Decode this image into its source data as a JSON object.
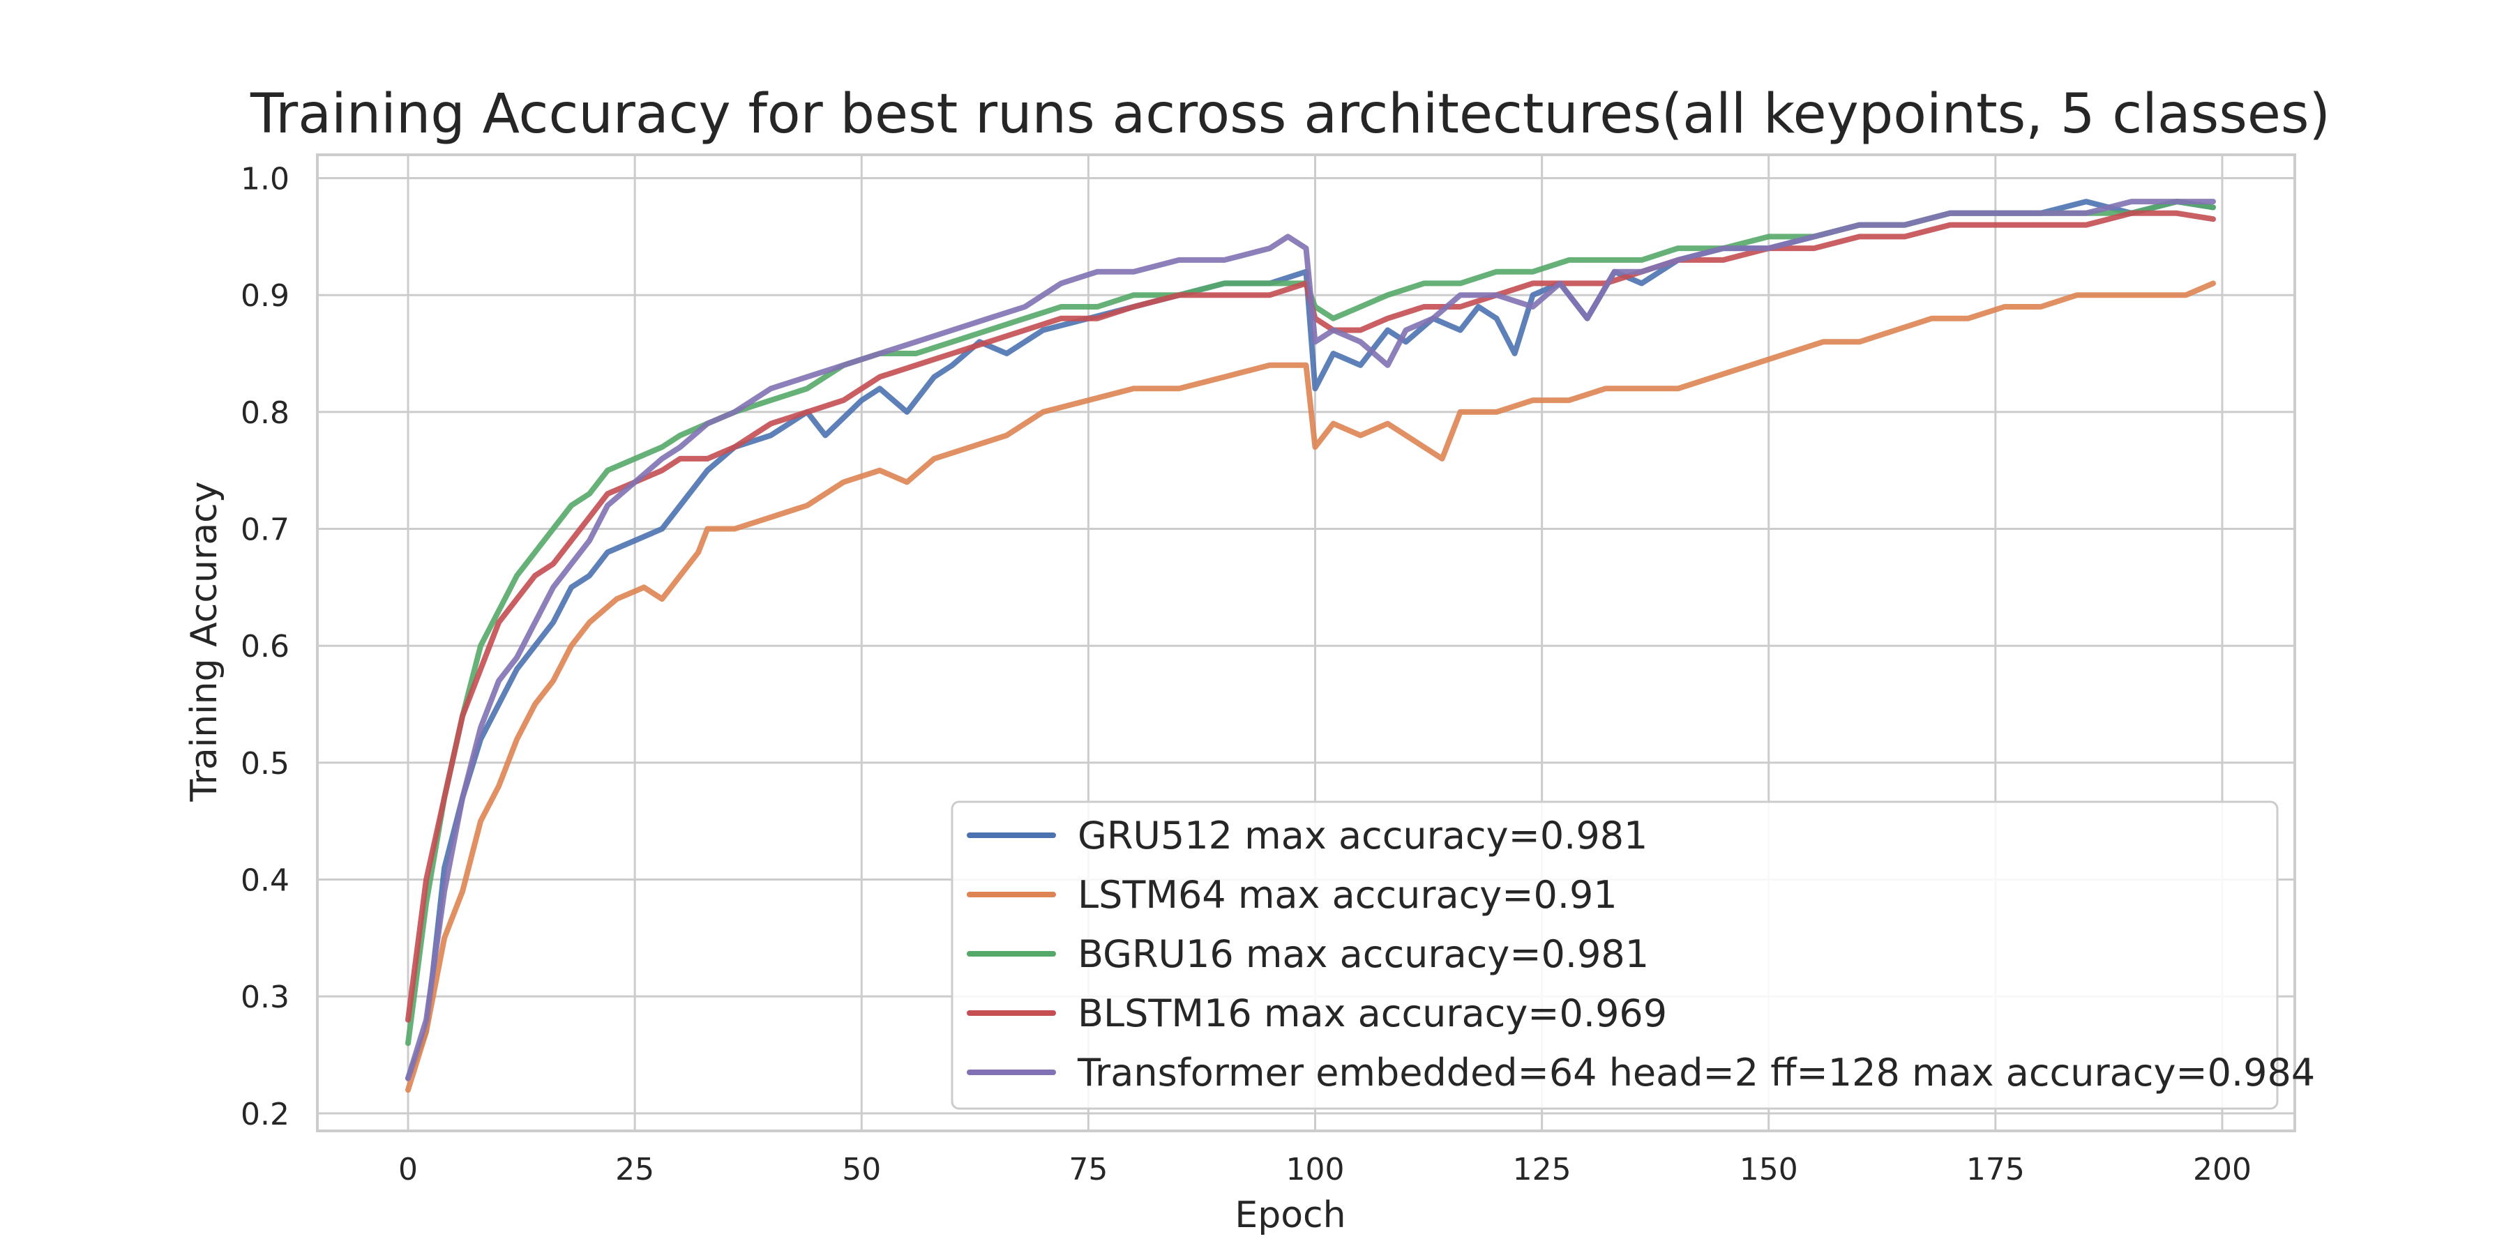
{
  "chart_data": {
    "type": "line",
    "title": "Training Accuracy for best runs across architectures(all keypoints, 5 classes)",
    "xlabel": "Epoch",
    "ylabel": "Training Accuracy",
    "xlim": [
      -10,
      208
    ],
    "ylim": [
      0.185,
      1.02
    ],
    "x_ticks": [
      0,
      25,
      50,
      75,
      100,
      125,
      150,
      175,
      200
    ],
    "y_ticks": [
      0.2,
      0.3,
      0.4,
      0.5,
      0.6,
      0.7,
      0.8,
      0.9,
      1.0
    ],
    "grid": true,
    "legend_position": "lower right",
    "series": [
      {
        "name": "GRU512 max accuracy=0.981",
        "color": "#4c72b0",
        "points": [
          [
            0,
            0.23
          ],
          [
            2,
            0.27
          ],
          [
            4,
            0.41
          ],
          [
            6,
            0.47
          ],
          [
            8,
            0.52
          ],
          [
            10,
            0.55
          ],
          [
            12,
            0.58
          ],
          [
            14,
            0.6
          ],
          [
            16,
            0.62
          ],
          [
            18,
            0.65
          ],
          [
            20,
            0.66
          ],
          [
            22,
            0.68
          ],
          [
            25,
            0.69
          ],
          [
            28,
            0.7
          ],
          [
            30,
            0.72
          ],
          [
            33,
            0.75
          ],
          [
            36,
            0.77
          ],
          [
            40,
            0.78
          ],
          [
            44,
            0.8
          ],
          [
            46,
            0.78
          ],
          [
            50,
            0.81
          ],
          [
            52,
            0.82
          ],
          [
            55,
            0.8
          ],
          [
            58,
            0.83
          ],
          [
            60,
            0.84
          ],
          [
            63,
            0.86
          ],
          [
            66,
            0.85
          ],
          [
            70,
            0.87
          ],
          [
            75,
            0.88
          ],
          [
            80,
            0.89
          ],
          [
            85,
            0.9
          ],
          [
            90,
            0.91
          ],
          [
            95,
            0.91
          ],
          [
            99,
            0.92
          ],
          [
            100,
            0.82
          ],
          [
            102,
            0.85
          ],
          [
            105,
            0.84
          ],
          [
            108,
            0.87
          ],
          [
            110,
            0.86
          ],
          [
            113,
            0.88
          ],
          [
            116,
            0.87
          ],
          [
            118,
            0.89
          ],
          [
            120,
            0.88
          ],
          [
            122,
            0.85
          ],
          [
            124,
            0.9
          ],
          [
            127,
            0.91
          ],
          [
            130,
            0.88
          ],
          [
            133,
            0.92
          ],
          [
            136,
            0.91
          ],
          [
            140,
            0.93
          ],
          [
            145,
            0.94
          ],
          [
            150,
            0.94
          ],
          [
            155,
            0.95
          ],
          [
            160,
            0.96
          ],
          [
            165,
            0.96
          ],
          [
            170,
            0.97
          ],
          [
            175,
            0.97
          ],
          [
            180,
            0.97
          ],
          [
            185,
            0.98
          ],
          [
            190,
            0.97
          ],
          [
            195,
            0.98
          ],
          [
            199,
            0.975
          ]
        ]
      },
      {
        "name": "LSTM64 max accuracy=0.91",
        "color": "#dd8452",
        "points": [
          [
            0,
            0.22
          ],
          [
            2,
            0.27
          ],
          [
            4,
            0.35
          ],
          [
            6,
            0.39
          ],
          [
            8,
            0.45
          ],
          [
            10,
            0.48
          ],
          [
            12,
            0.52
          ],
          [
            14,
            0.55
          ],
          [
            16,
            0.57
          ],
          [
            18,
            0.6
          ],
          [
            20,
            0.62
          ],
          [
            23,
            0.64
          ],
          [
            26,
            0.65
          ],
          [
            28,
            0.64
          ],
          [
            30,
            0.66
          ],
          [
            32,
            0.68
          ],
          [
            33,
            0.7
          ],
          [
            36,
            0.7
          ],
          [
            40,
            0.71
          ],
          [
            44,
            0.72
          ],
          [
            48,
            0.74
          ],
          [
            52,
            0.75
          ],
          [
            55,
            0.74
          ],
          [
            58,
            0.76
          ],
          [
            62,
            0.77
          ],
          [
            66,
            0.78
          ],
          [
            70,
            0.8
          ],
          [
            75,
            0.81
          ],
          [
            80,
            0.82
          ],
          [
            85,
            0.82
          ],
          [
            90,
            0.83
          ],
          [
            95,
            0.84
          ],
          [
            99,
            0.84
          ],
          [
            100,
            0.77
          ],
          [
            102,
            0.79
          ],
          [
            105,
            0.78
          ],
          [
            108,
            0.79
          ],
          [
            110,
            0.78
          ],
          [
            112,
            0.77
          ],
          [
            114,
            0.76
          ],
          [
            116,
            0.8
          ],
          [
            120,
            0.8
          ],
          [
            124,
            0.81
          ],
          [
            128,
            0.81
          ],
          [
            132,
            0.82
          ],
          [
            136,
            0.82
          ],
          [
            140,
            0.82
          ],
          [
            144,
            0.83
          ],
          [
            148,
            0.84
          ],
          [
            152,
            0.85
          ],
          [
            156,
            0.86
          ],
          [
            160,
            0.86
          ],
          [
            164,
            0.87
          ],
          [
            168,
            0.88
          ],
          [
            172,
            0.88
          ],
          [
            176,
            0.89
          ],
          [
            180,
            0.89
          ],
          [
            184,
            0.9
          ],
          [
            188,
            0.9
          ],
          [
            192,
            0.9
          ],
          [
            196,
            0.9
          ],
          [
            199,
            0.91
          ]
        ]
      },
      {
        "name": "BGRU16 max accuracy=0.981",
        "color": "#55a868",
        "points": [
          [
            0,
            0.26
          ],
          [
            2,
            0.38
          ],
          [
            4,
            0.47
          ],
          [
            6,
            0.54
          ],
          [
            8,
            0.6
          ],
          [
            10,
            0.63
          ],
          [
            12,
            0.66
          ],
          [
            14,
            0.68
          ],
          [
            16,
            0.7
          ],
          [
            18,
            0.72
          ],
          [
            20,
            0.73
          ],
          [
            22,
            0.75
          ],
          [
            25,
            0.76
          ],
          [
            28,
            0.77
          ],
          [
            30,
            0.78
          ],
          [
            33,
            0.79
          ],
          [
            36,
            0.8
          ],
          [
            40,
            0.81
          ],
          [
            44,
            0.82
          ],
          [
            48,
            0.84
          ],
          [
            52,
            0.85
          ],
          [
            56,
            0.85
          ],
          [
            60,
            0.86
          ],
          [
            64,
            0.87
          ],
          [
            68,
            0.88
          ],
          [
            72,
            0.89
          ],
          [
            76,
            0.89
          ],
          [
            80,
            0.9
          ],
          [
            85,
            0.9
          ],
          [
            90,
            0.91
          ],
          [
            95,
            0.91
          ],
          [
            99,
            0.91
          ],
          [
            100,
            0.89
          ],
          [
            102,
            0.88
          ],
          [
            105,
            0.89
          ],
          [
            108,
            0.9
          ],
          [
            112,
            0.91
          ],
          [
            116,
            0.91
          ],
          [
            120,
            0.92
          ],
          [
            124,
            0.92
          ],
          [
            128,
            0.93
          ],
          [
            132,
            0.93
          ],
          [
            136,
            0.93
          ],
          [
            140,
            0.94
          ],
          [
            145,
            0.94
          ],
          [
            150,
            0.95
          ],
          [
            155,
            0.95
          ],
          [
            160,
            0.96
          ],
          [
            165,
            0.96
          ],
          [
            170,
            0.97
          ],
          [
            175,
            0.97
          ],
          [
            180,
            0.97
          ],
          [
            185,
            0.97
          ],
          [
            190,
            0.97
          ],
          [
            195,
            0.98
          ],
          [
            199,
            0.975
          ]
        ]
      },
      {
        "name": "BLSTM16 max accuracy=0.969",
        "color": "#c44e52",
        "points": [
          [
            0,
            0.28
          ],
          [
            2,
            0.4
          ],
          [
            4,
            0.47
          ],
          [
            6,
            0.54
          ],
          [
            8,
            0.58
          ],
          [
            10,
            0.62
          ],
          [
            12,
            0.64
          ],
          [
            14,
            0.66
          ],
          [
            16,
            0.67
          ],
          [
            18,
            0.69
          ],
          [
            20,
            0.71
          ],
          [
            22,
            0.73
          ],
          [
            25,
            0.74
          ],
          [
            28,
            0.75
          ],
          [
            30,
            0.76
          ],
          [
            33,
            0.76
          ],
          [
            36,
            0.77
          ],
          [
            40,
            0.79
          ],
          [
            44,
            0.8
          ],
          [
            48,
            0.81
          ],
          [
            52,
            0.83
          ],
          [
            56,
            0.84
          ],
          [
            60,
            0.85
          ],
          [
            64,
            0.86
          ],
          [
            68,
            0.87
          ],
          [
            72,
            0.88
          ],
          [
            76,
            0.88
          ],
          [
            80,
            0.89
          ],
          [
            85,
            0.9
          ],
          [
            90,
            0.9
          ],
          [
            95,
            0.9
          ],
          [
            99,
            0.91
          ],
          [
            100,
            0.88
          ],
          [
            102,
            0.87
          ],
          [
            105,
            0.87
          ],
          [
            108,
            0.88
          ],
          [
            112,
            0.89
          ],
          [
            116,
            0.89
          ],
          [
            120,
            0.9
          ],
          [
            124,
            0.91
          ],
          [
            128,
            0.91
          ],
          [
            132,
            0.91
          ],
          [
            136,
            0.92
          ],
          [
            140,
            0.93
          ],
          [
            145,
            0.93
          ],
          [
            150,
            0.94
          ],
          [
            155,
            0.94
          ],
          [
            160,
            0.95
          ],
          [
            165,
            0.95
          ],
          [
            170,
            0.96
          ],
          [
            175,
            0.96
          ],
          [
            180,
            0.96
          ],
          [
            185,
            0.96
          ],
          [
            190,
            0.97
          ],
          [
            195,
            0.97
          ],
          [
            199,
            0.965
          ]
        ]
      },
      {
        "name": "Transformer embedded=64 head=2 ff=128 max accuracy=0.984",
        "color": "#8172b3",
        "points": [
          [
            0,
            0.23
          ],
          [
            2,
            0.28
          ],
          [
            4,
            0.39
          ],
          [
            6,
            0.47
          ],
          [
            8,
            0.53
          ],
          [
            10,
            0.57
          ],
          [
            12,
            0.59
          ],
          [
            14,
            0.62
          ],
          [
            16,
            0.65
          ],
          [
            18,
            0.67
          ],
          [
            20,
            0.69
          ],
          [
            22,
            0.72
          ],
          [
            25,
            0.74
          ],
          [
            28,
            0.76
          ],
          [
            30,
            0.77
          ],
          [
            33,
            0.79
          ],
          [
            36,
            0.8
          ],
          [
            40,
            0.82
          ],
          [
            44,
            0.83
          ],
          [
            48,
            0.84
          ],
          [
            52,
            0.85
          ],
          [
            56,
            0.86
          ],
          [
            60,
            0.87
          ],
          [
            64,
            0.88
          ],
          [
            68,
            0.89
          ],
          [
            72,
            0.91
          ],
          [
            76,
            0.92
          ],
          [
            80,
            0.92
          ],
          [
            85,
            0.93
          ],
          [
            90,
            0.93
          ],
          [
            95,
            0.94
          ],
          [
            97,
            0.95
          ],
          [
            99,
            0.94
          ],
          [
            100,
            0.86
          ],
          [
            102,
            0.87
          ],
          [
            105,
            0.86
          ],
          [
            108,
            0.84
          ],
          [
            110,
            0.87
          ],
          [
            113,
            0.88
          ],
          [
            116,
            0.9
          ],
          [
            120,
            0.9
          ],
          [
            124,
            0.89
          ],
          [
            127,
            0.91
          ],
          [
            130,
            0.88
          ],
          [
            133,
            0.92
          ],
          [
            136,
            0.92
          ],
          [
            140,
            0.93
          ],
          [
            145,
            0.94
          ],
          [
            150,
            0.94
          ],
          [
            155,
            0.95
          ],
          [
            160,
            0.96
          ],
          [
            165,
            0.96
          ],
          [
            170,
            0.97
          ],
          [
            175,
            0.97
          ],
          [
            180,
            0.97
          ],
          [
            185,
            0.97
          ],
          [
            190,
            0.98
          ],
          [
            195,
            0.98
          ],
          [
            199,
            0.98
          ]
        ]
      }
    ]
  }
}
